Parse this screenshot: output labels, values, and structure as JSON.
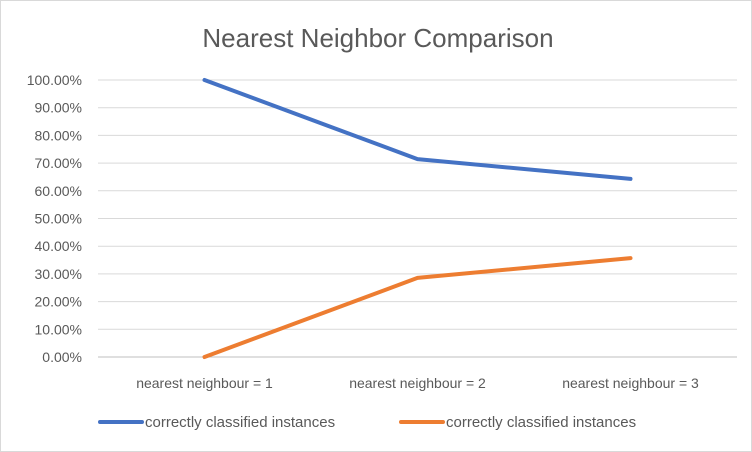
{
  "chart_data": {
    "type": "line",
    "title": "Nearest Neighbor Comparison",
    "categories": [
      "nearest neighbour = 1",
      "nearest neighbour = 2",
      "nearest neighbour = 3"
    ],
    "y_tick_labels": [
      "0.00%",
      "10.00%",
      "20.00%",
      "30.00%",
      "40.00%",
      "50.00%",
      "60.00%",
      "70.00%",
      "80.00%",
      "90.00%",
      "100.00%"
    ],
    "ylim": [
      0,
      1
    ],
    "y_format": "percent",
    "grid": true,
    "legend_position": "bottom",
    "series": [
      {
        "name": "correctly classified instances",
        "color": "#4472c4",
        "values": [
          1.0,
          0.7143,
          0.6429
        ]
      },
      {
        "name": "correctly classified instances",
        "color": "#ed7d31",
        "values": [
          0.0,
          0.2857,
          0.3571
        ]
      }
    ]
  }
}
